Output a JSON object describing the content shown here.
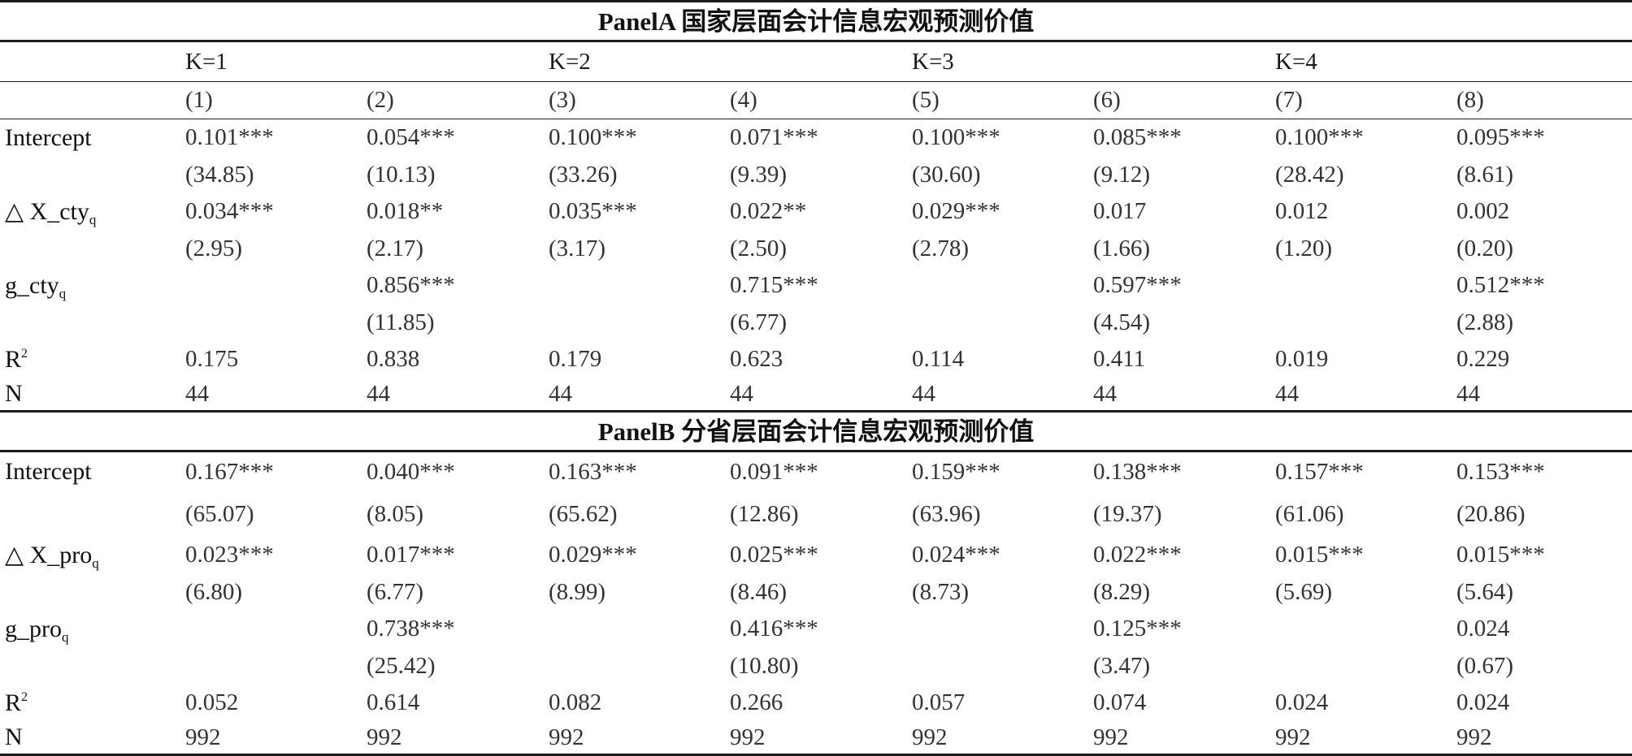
{
  "panelA": {
    "title": "PanelA 国家层面会计信息宏观预测价值",
    "k_headers": [
      "K=1",
      "K=2",
      "K=3",
      "K=4"
    ],
    "col_numbers": [
      "(1)",
      "(2)",
      "(3)",
      "(4)",
      "(5)",
      "(6)",
      "(7)",
      "(8)"
    ],
    "rows": [
      {
        "label": "Intercept",
        "label_sub": "",
        "values": [
          "0.101***",
          "0.054***",
          "0.100***",
          "0.071***",
          "0.100***",
          "0.085***",
          "0.100***",
          "0.095***"
        ]
      },
      {
        "label": "",
        "label_sub": "",
        "values": [
          "(34.85)",
          "(10.13)",
          "(33.26)",
          "(9.39)",
          "(30.60)",
          "(9.12)",
          "(28.42)",
          "(8.61)"
        ]
      },
      {
        "label": "△ X_cty",
        "label_sub": "q",
        "values": [
          "0.034***",
          "0.018**",
          "0.035***",
          "0.022**",
          "0.029***",
          "0.017",
          "0.012",
          "0.002"
        ]
      },
      {
        "label": "",
        "label_sub": "",
        "values": [
          "(2.95)",
          "(2.17)",
          "(3.17)",
          "(2.50)",
          "(2.78)",
          "(1.66)",
          "(1.20)",
          "(0.20)"
        ]
      },
      {
        "label": "g_cty",
        "label_sub": "q",
        "values": [
          "",
          "0.856***",
          "",
          "0.715***",
          "",
          "0.597***",
          "",
          "0.512***"
        ]
      },
      {
        "label": "",
        "label_sub": "",
        "values": [
          "",
          "(11.85)",
          "",
          "(6.77)",
          "",
          "(4.54)",
          "",
          "(2.88)"
        ]
      },
      {
        "label": "R",
        "label_sup": "2",
        "values": [
          "0.175",
          "0.838",
          "0.179",
          "0.623",
          "0.114",
          "0.411",
          "0.019",
          "0.229"
        ]
      },
      {
        "label": "N",
        "label_sub": "",
        "values": [
          "44",
          "44",
          "44",
          "44",
          "44",
          "44",
          "44",
          "44"
        ]
      }
    ]
  },
  "panelB": {
    "title": "PanelB 分省层面会计信息宏观预测价值",
    "rows": [
      {
        "label": "Intercept",
        "label_sub": "",
        "values": [
          "0.167***",
          "0.040***",
          "0.163***",
          "0.091***",
          "0.159***",
          "0.138***",
          "0.157***",
          "0.153***"
        ]
      },
      {
        "label": "",
        "label_sub": "",
        "values": [
          "(65.07)",
          "(8.05)",
          "(65.62)",
          "(12.86)",
          "(63.96)",
          "(19.37)",
          "(61.06)",
          "(20.86)"
        ]
      },
      {
        "label": "△ X_pro",
        "label_sub": "q",
        "values": [
          "0.023***",
          "0.017***",
          "0.029***",
          "0.025***",
          "0.024***",
          "0.022***",
          "0.015***",
          "0.015***"
        ]
      },
      {
        "label": "",
        "label_sub": "",
        "values": [
          "(6.80)",
          "(6.77)",
          "(8.99)",
          "(8.46)",
          "(8.73)",
          "(8.29)",
          "(5.69)",
          "(5.64)"
        ]
      },
      {
        "label": "g_pro",
        "label_sub": "q",
        "values": [
          "",
          "0.738***",
          "",
          "0.416***",
          "",
          "0.125***",
          "",
          "0.024"
        ]
      },
      {
        "label": "",
        "label_sub": "",
        "values": [
          "",
          "(25.42)",
          "",
          "(10.80)",
          "",
          "(3.47)",
          "",
          "(0.67)"
        ]
      },
      {
        "label": "R",
        "label_sup": "2",
        "values": [
          "0.052",
          "0.614",
          "0.082",
          "0.266",
          "0.057",
          "0.074",
          "0.024",
          "0.024"
        ]
      },
      {
        "label": "N",
        "label_sub": "",
        "values": [
          "992",
          "992",
          "992",
          "992",
          "992",
          "992",
          "992",
          "992"
        ]
      }
    ]
  }
}
